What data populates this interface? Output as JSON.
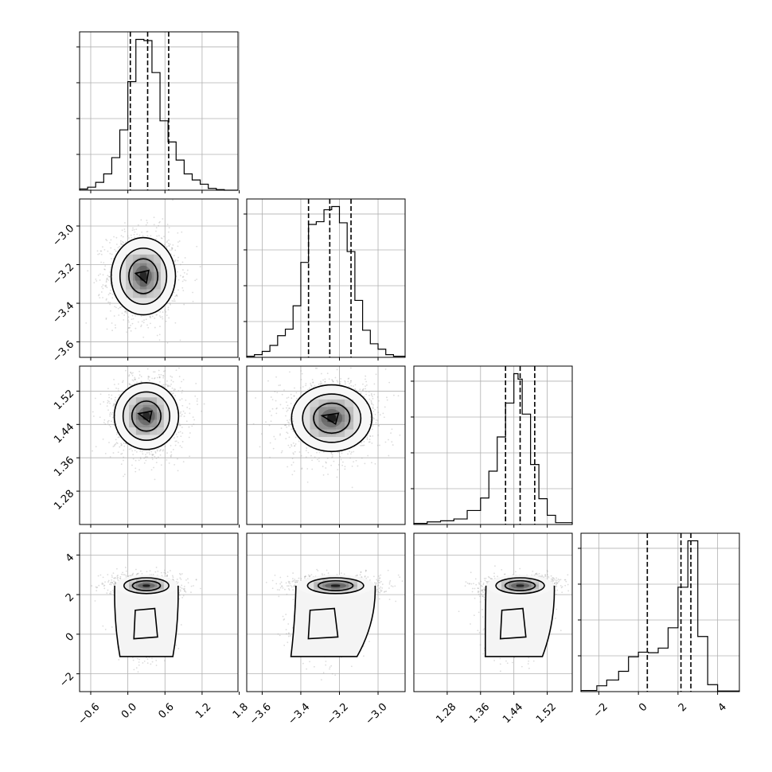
{
  "chart_data": {
    "type": "corner",
    "parameters": [
      {
        "range": [
          -0.78,
          1.78
        ],
        "ticks": [
          -0.6,
          0.0,
          0.6,
          1.2,
          1.8
        ],
        "tick_labels": [
          "−0.6",
          "0.0",
          "0.6",
          "1.2",
          "1.8"
        ],
        "mean": 0.3,
        "sd": 0.25,
        "quantiles": [
          0.04,
          0.32,
          0.66
        ],
        "hist_edges": [
          -0.78,
          -0.65,
          -0.52,
          -0.39,
          -0.26,
          -0.13,
          0.0,
          0.13,
          0.26,
          0.39,
          0.52,
          0.65,
          0.78,
          0.91,
          1.04,
          1.17,
          1.3,
          1.43,
          1.56,
          1.78
        ],
        "hist_counts": [
          2,
          5,
          13,
          27,
          54,
          100,
          180,
          250,
          248,
          195,
          115,
          80,
          50,
          27,
          17,
          10,
          3,
          1,
          0
        ]
      },
      {
        "range": [
          -3.68,
          -2.86
        ],
        "ticks": [
          -3.6,
          -3.4,
          -3.2,
          -3.0
        ],
        "tick_labels": [
          "−3.6",
          "−3.4",
          "−3.2",
          "−3.0"
        ],
        "mean": -3.26,
        "sd": 0.1,
        "quantiles": [
          -3.36,
          -3.25,
          -3.14
        ],
        "hist_edges": [
          -3.68,
          -3.64,
          -3.6,
          -3.56,
          -3.52,
          -3.48,
          -3.44,
          -3.4,
          -3.36,
          -3.32,
          -3.28,
          -3.24,
          -3.2,
          -3.16,
          -3.12,
          -3.08,
          -3.04,
          -3.0,
          -2.96,
          -2.92,
          -2.86
        ],
        "hist_counts": [
          2,
          5,
          11,
          22,
          40,
          52,
          95,
          175,
          245,
          250,
          272,
          278,
          248,
          195,
          105,
          50,
          25,
          15,
          5,
          2
        ]
      },
      {
        "range": [
          1.2,
          1.58
        ],
        "ticks": [
          1.28,
          1.36,
          1.44,
          1.52
        ],
        "tick_labels": [
          "1.28",
          "1.36",
          "1.44",
          "1.52"
        ],
        "mean": 1.455,
        "sd": 0.04,
        "quantiles": [
          1.42,
          1.455,
          1.49
        ],
        "hist_edges": [
          1.2,
          1.232,
          1.264,
          1.296,
          1.328,
          1.36,
          1.38,
          1.4,
          1.42,
          1.44,
          1.45,
          1.46,
          1.48,
          1.5,
          1.52,
          1.54,
          1.58
        ],
        "hist_counts": [
          3,
          7,
          10,
          15,
          38,
          72,
          145,
          238,
          330,
          410,
          395,
          300,
          163,
          70,
          25,
          5
        ]
      },
      {
        "range": [
          -2.9,
          5.1
        ],
        "ticks": [
          -2,
          0,
          2,
          4
        ],
        "tick_labels": [
          "−2",
          "0",
          "2",
          "4"
        ],
        "mean": 2.4,
        "sd": 0.5,
        "quantiles": [
          0.45,
          2.15,
          2.65
        ],
        "hist_edges": [
          -2.9,
          -2.1,
          -1.6,
          -1.0,
          -0.5,
          0.0,
          0.5,
          1.0,
          1.5,
          2.0,
          2.5,
          3.0,
          3.5,
          4.0,
          5.1
        ],
        "hist_counts": [
          2,
          10,
          20,
          35,
          60,
          68,
          67,
          75,
          110,
          180,
          260,
          95,
          12,
          1
        ]
      }
    ],
    "pairs": [
      {
        "row": 1,
        "col": 0,
        "density_peak": [
          0.25,
          -3.26
        ]
      },
      {
        "row": 2,
        "col": 0,
        "density_peak": [
          0.3,
          1.46
        ]
      },
      {
        "row": 2,
        "col": 1,
        "density_peak": [
          -3.24,
          1.455
        ]
      },
      {
        "row": 3,
        "col": 0,
        "density_peak": [
          0.3,
          2.45
        ],
        "secondary_mode": [
          0.3,
          0.4
        ]
      },
      {
        "row": 3,
        "col": 1,
        "density_peak": [
          -3.22,
          2.45
        ],
        "secondary_mode": [
          -3.28,
          0.4
        ]
      },
      {
        "row": 3,
        "col": 2,
        "density_peak": [
          1.455,
          2.45
        ],
        "secondary_mode": [
          1.44,
          0.4
        ]
      }
    ],
    "grid": true,
    "axis_labels": []
  }
}
